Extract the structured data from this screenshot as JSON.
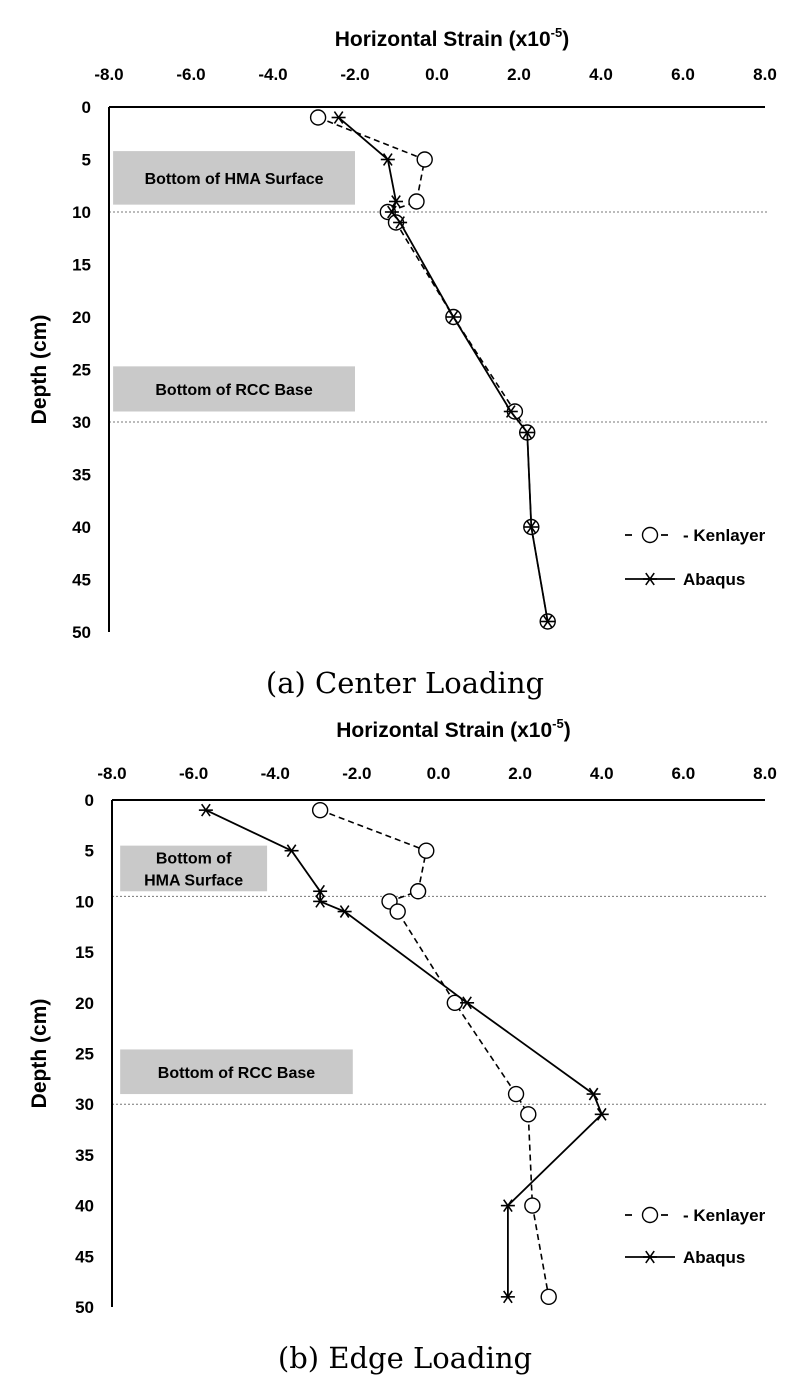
{
  "chart_data": [
    {
      "type": "line",
      "caption": "(a) Center Loading",
      "xlabel": "Horizontal Strain (x10",
      "xlabel_exp": "-5",
      "xlabel_close": ")",
      "ylabel": "Depth (cm)",
      "xlim": [
        -8.0,
        8.0
      ],
      "ylim": [
        0,
        50
      ],
      "x_ticks": [
        "-8.0",
        "-6.0",
        "-4.0",
        "-2.0",
        "0.0",
        "2.0",
        "4.0",
        "6.0",
        "8.0"
      ],
      "y_ticks": [
        "0",
        "5",
        "10",
        "15",
        "20",
        "25",
        "30",
        "35",
        "40",
        "45",
        "50"
      ],
      "legend_position": "bottom-right",
      "reference_lines": [
        10,
        30
      ],
      "annotations": [
        {
          "lines": [
            "Bottom of HMA Surface"
          ],
          "depth_top": 4.2,
          "depth_bottom": 9.3,
          "strain_left": -7.9,
          "strain_right": -2.0
        },
        {
          "lines": [
            "Bottom of RCC Base"
          ],
          "depth_top": 24.7,
          "depth_bottom": 29.0,
          "strain_left": -7.9,
          "strain_right": -2.0
        }
      ],
      "series": [
        {
          "name": "Kenlayer",
          "style": "dashed-circle",
          "points": [
            [
              -2.9,
              1
            ],
            [
              -0.3,
              5
            ],
            [
              -0.5,
              9
            ],
            [
              -1.2,
              10
            ],
            [
              -1.0,
              11
            ],
            [
              0.4,
              20
            ],
            [
              1.9,
              29
            ],
            [
              2.2,
              31
            ],
            [
              2.3,
              40
            ],
            [
              2.7,
              49
            ]
          ]
        },
        {
          "name": "Abaqus",
          "style": "solid-asterisk",
          "points": [
            [
              -2.4,
              1
            ],
            [
              -1.2,
              5
            ],
            [
              -1.0,
              9
            ],
            [
              -1.1,
              10
            ],
            [
              -0.9,
              11
            ],
            [
              0.4,
              20
            ],
            [
              1.8,
              29
            ],
            [
              2.2,
              31
            ],
            [
              2.3,
              40
            ],
            [
              2.7,
              49
            ]
          ]
        }
      ]
    },
    {
      "type": "line",
      "caption": "(b) Edge Loading",
      "xlabel": "Horizontal Strain (x10",
      "xlabel_exp": "-5",
      "xlabel_close": ")",
      "ylabel": "Depth (cm)",
      "xlim": [
        -8.0,
        8.0
      ],
      "ylim": [
        0,
        50
      ],
      "x_ticks": [
        "-8.0",
        "-6.0",
        "-4.0",
        "-2.0",
        "0.0",
        "2.0",
        "4.0",
        "6.0",
        "8.0"
      ],
      "y_ticks": [
        "0",
        "5",
        "10",
        "15",
        "20",
        "25",
        "30",
        "35",
        "40",
        "45",
        "50"
      ],
      "legend_position": "bottom-right",
      "reference_lines": [
        9.5,
        30
      ],
      "annotations": [
        {
          "lines": [
            "Bottom of",
            "HMA Surface"
          ],
          "depth_top": 4.5,
          "depth_bottom": 9.0,
          "strain_left": -7.8,
          "strain_right": -4.2
        },
        {
          "lines": [
            "Bottom of RCC Base"
          ],
          "depth_top": 24.6,
          "depth_bottom": 29.0,
          "strain_left": -7.8,
          "strain_right": -2.1
        }
      ],
      "series": [
        {
          "name": "Kenlayer",
          "style": "dashed-circle",
          "points": [
            [
              -2.9,
              1
            ],
            [
              -0.3,
              5
            ],
            [
              -0.5,
              9
            ],
            [
              -1.2,
              10
            ],
            [
              -1.0,
              11
            ],
            [
              0.4,
              20
            ],
            [
              1.9,
              29
            ],
            [
              2.2,
              31
            ],
            [
              2.3,
              40
            ],
            [
              2.7,
              49
            ]
          ]
        },
        {
          "name": "Abaqus",
          "style": "solid-asterisk",
          "points": [
            [
              -5.7,
              1
            ],
            [
              -3.6,
              5
            ],
            [
              -2.9,
              9
            ],
            [
              -2.9,
              10
            ],
            [
              -2.3,
              11
            ],
            [
              0.7,
              20
            ],
            [
              3.8,
              29
            ],
            [
              4.0,
              31
            ],
            [
              1.7,
              40
            ],
            [
              1.7,
              49
            ]
          ]
        }
      ]
    }
  ]
}
